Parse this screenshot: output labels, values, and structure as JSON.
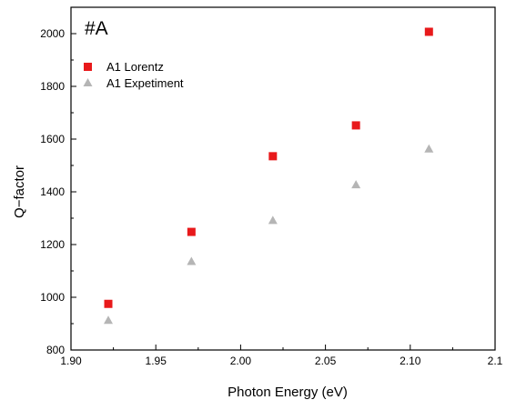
{
  "chart_data": {
    "type": "scatter",
    "panel_label": "#A",
    "xlabel": "Photon Energy (eV)",
    "ylabel": "Q−factor",
    "xlim": [
      1.9,
      2.15
    ],
    "ylim": [
      800,
      2100
    ],
    "xticks": [
      "1.90",
      "1.95",
      "2.00",
      "2.05",
      "2.10",
      "2.1"
    ],
    "yticks": [
      "800",
      "1000",
      "1200",
      "1400",
      "1600",
      "1800",
      "2000"
    ],
    "legend_position": "top-left",
    "grid": false,
    "series": [
      {
        "name": "A1 Lorentz",
        "marker": "square",
        "color": "#e8191b",
        "x": [
          1.922,
          1.971,
          2.019,
          2.068,
          2.111
        ],
        "y": [
          975,
          1248,
          1535,
          1652,
          2007
        ]
      },
      {
        "name": "A1 Expetiment",
        "marker": "triangle",
        "color": "#b5b5b5",
        "x": [
          1.922,
          1.971,
          2.019,
          2.068,
          2.111
        ],
        "y": [
          913,
          1136,
          1292,
          1427,
          1563
        ]
      }
    ]
  }
}
